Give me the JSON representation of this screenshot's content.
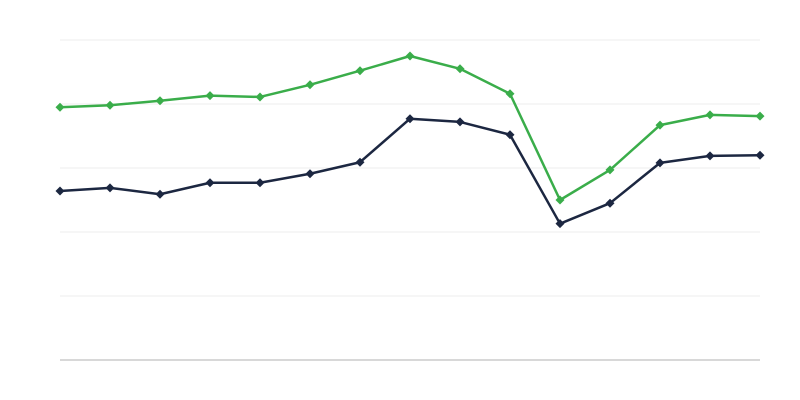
{
  "chart_data": {
    "type": "line",
    "categories": [
      null,
      null,
      null,
      null,
      null,
      null,
      null,
      null,
      null,
      null,
      null,
      null,
      null,
      null,
      null
    ],
    "series": [
      {
        "color": "#3aad4a",
        "values": [
          3.95,
          3.98,
          4.05,
          4.13,
          4.11,
          4.3,
          4.52,
          4.75,
          4.55,
          4.16,
          2.5,
          2.97,
          3.67,
          3.83,
          3.81
        ]
      },
      {
        "color": "#1c2741",
        "values": [
          2.64,
          2.69,
          2.59,
          2.77,
          2.77,
          2.91,
          3.09,
          3.77,
          3.72,
          3.52,
          2.13,
          2.45,
          3.08,
          3.19,
          3.2
        ]
      }
    ],
    "ylim": [
      0,
      5
    ],
    "yticks": [
      0,
      1,
      2,
      3,
      4,
      5
    ],
    "grid": true
  }
}
